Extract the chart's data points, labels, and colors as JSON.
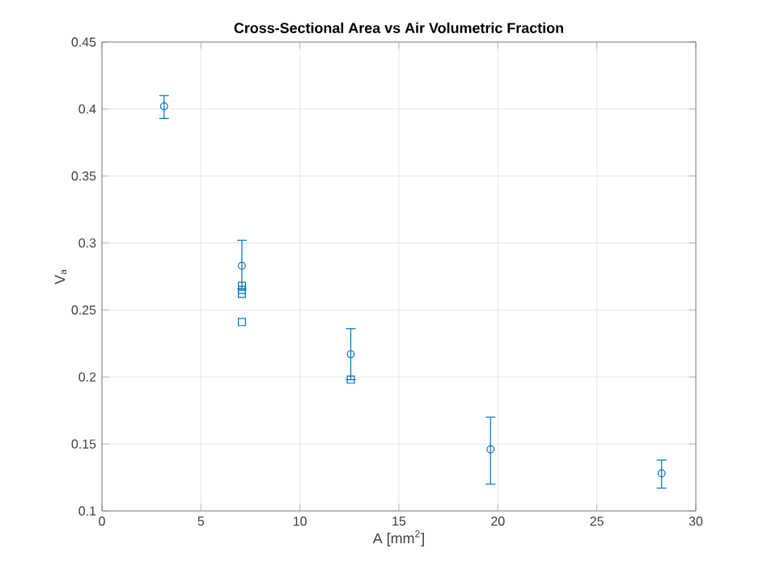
{
  "chart_data": {
    "type": "scatter",
    "title": "**Cross-Sectional Area vs Air Volumetric Fraction**",
    "xlabel": "A [mm$^{2}$]",
    "ylabel": "V$_{a}$",
    "xlim": [
      0,
      30
    ],
    "xticks": [
      0,
      5,
      10,
      15,
      20,
      25,
      30
    ],
    "ylim": [
      0.1,
      0.45
    ],
    "yticks": [
      0.1,
      0.15,
      0.2,
      0.25,
      0.3,
      0.35,
      0.4,
      0.45
    ],
    "grid": true,
    "series": [
      {
        "color": "#0072bd",
        "marker": "circle",
        "x": [
          3.14,
          7.07,
          12.57,
          19.63,
          28.27
        ],
        "values": [
          0.402,
          0.283,
          0.217,
          0.146,
          0.128
        ],
        "errors": [
          [
            0.393,
            0.41
          ],
          [
            0.266,
            0.302
          ],
          [
            0.198,
            0.236
          ],
          [
            0.12,
            0.17
          ],
          [
            0.117,
            0.138
          ]
        ]
      },
      {
        "color": "#0072bd",
        "marker": "square",
        "x": [
          7.07,
          7.07,
          7.07,
          7.07,
          12.57
        ],
        "values": [
          0.268,
          0.265,
          0.262,
          0.241,
          0.198
        ]
      }
    ]
  }
}
